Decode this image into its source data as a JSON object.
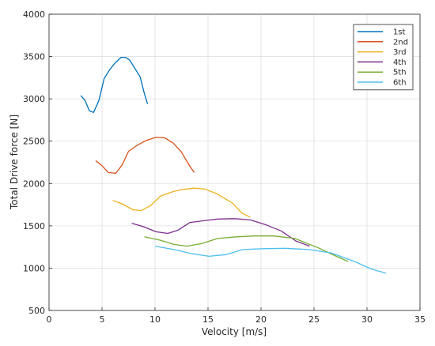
{
  "chart_data": {
    "type": "line",
    "title": "",
    "xlabel": "Velocity [m/s]",
    "ylabel": "Total Drive force [N]",
    "xlim": [
      0,
      35
    ],
    "ylim": [
      500,
      4000
    ],
    "xticks": [
      0,
      5,
      10,
      15,
      20,
      25,
      30,
      35
    ],
    "yticks": [
      500,
      1000,
      1500,
      2000,
      2500,
      3000,
      3500,
      4000
    ],
    "grid": true,
    "legend_position": "top-right",
    "series": [
      {
        "name": "1st",
        "color": "#0072BD",
        "x": [
          3.0,
          3.4,
          3.8,
          4.2,
          4.7,
          5.2,
          5.7,
          6.2,
          6.8,
          7.2,
          7.6,
          8.0,
          8.6,
          9.0,
          9.3
        ],
        "y": [
          3040,
          2980,
          2860,
          2840,
          2980,
          3240,
          3340,
          3420,
          3490,
          3490,
          3460,
          3380,
          3260,
          3060,
          2940
        ]
      },
      {
        "name": "2nd",
        "color": "#D95319",
        "x": [
          4.4,
          5.0,
          5.6,
          6.3,
          6.9,
          7.5,
          8.3,
          9.2,
          10.1,
          10.9,
          11.7,
          12.5,
          13.2,
          13.7
        ],
        "y": [
          2270,
          2210,
          2130,
          2120,
          2220,
          2380,
          2450,
          2510,
          2545,
          2540,
          2480,
          2370,
          2220,
          2130
        ]
      },
      {
        "name": "3rd",
        "color": "#EDB120",
        "x": [
          6.0,
          6.9,
          7.9,
          8.7,
          9.6,
          10.5,
          11.6,
          12.6,
          13.7,
          14.7,
          15.8,
          17.3,
          18.2,
          19.0
        ],
        "y": [
          1800,
          1760,
          1690,
          1680,
          1740,
          1850,
          1900,
          1930,
          1945,
          1935,
          1880,
          1770,
          1650,
          1600
        ]
      },
      {
        "name": "4th",
        "color": "#7E2F8E",
        "x": [
          7.8,
          8.9,
          10.1,
          11.2,
          12.2,
          13.3,
          14.6,
          15.9,
          17.5,
          19.0,
          20.5,
          21.9,
          23.3,
          24.6
        ],
        "y": [
          1530,
          1490,
          1430,
          1410,
          1450,
          1540,
          1560,
          1580,
          1585,
          1570,
          1510,
          1440,
          1320,
          1260
        ]
      },
      {
        "name": "5th",
        "color": "#77AC30",
        "x": [
          9.0,
          10.5,
          11.8,
          13.0,
          14.4,
          15.9,
          17.7,
          19.3,
          21.2,
          23.2,
          25.4,
          27.1,
          28.2
        ],
        "y": [
          1370,
          1330,
          1280,
          1260,
          1290,
          1350,
          1370,
          1380,
          1380,
          1350,
          1240,
          1140,
          1080
        ]
      },
      {
        "name": "6th",
        "color": "#4DBEEE",
        "x": [
          10.0,
          11.8,
          13.5,
          15.1,
          16.7,
          18.3,
          20.2,
          22.3,
          24.5,
          26.6,
          28.8,
          30.4,
          31.8
        ],
        "y": [
          1260,
          1220,
          1170,
          1140,
          1160,
          1220,
          1230,
          1235,
          1220,
          1180,
          1080,
          990,
          940
        ]
      }
    ]
  }
}
